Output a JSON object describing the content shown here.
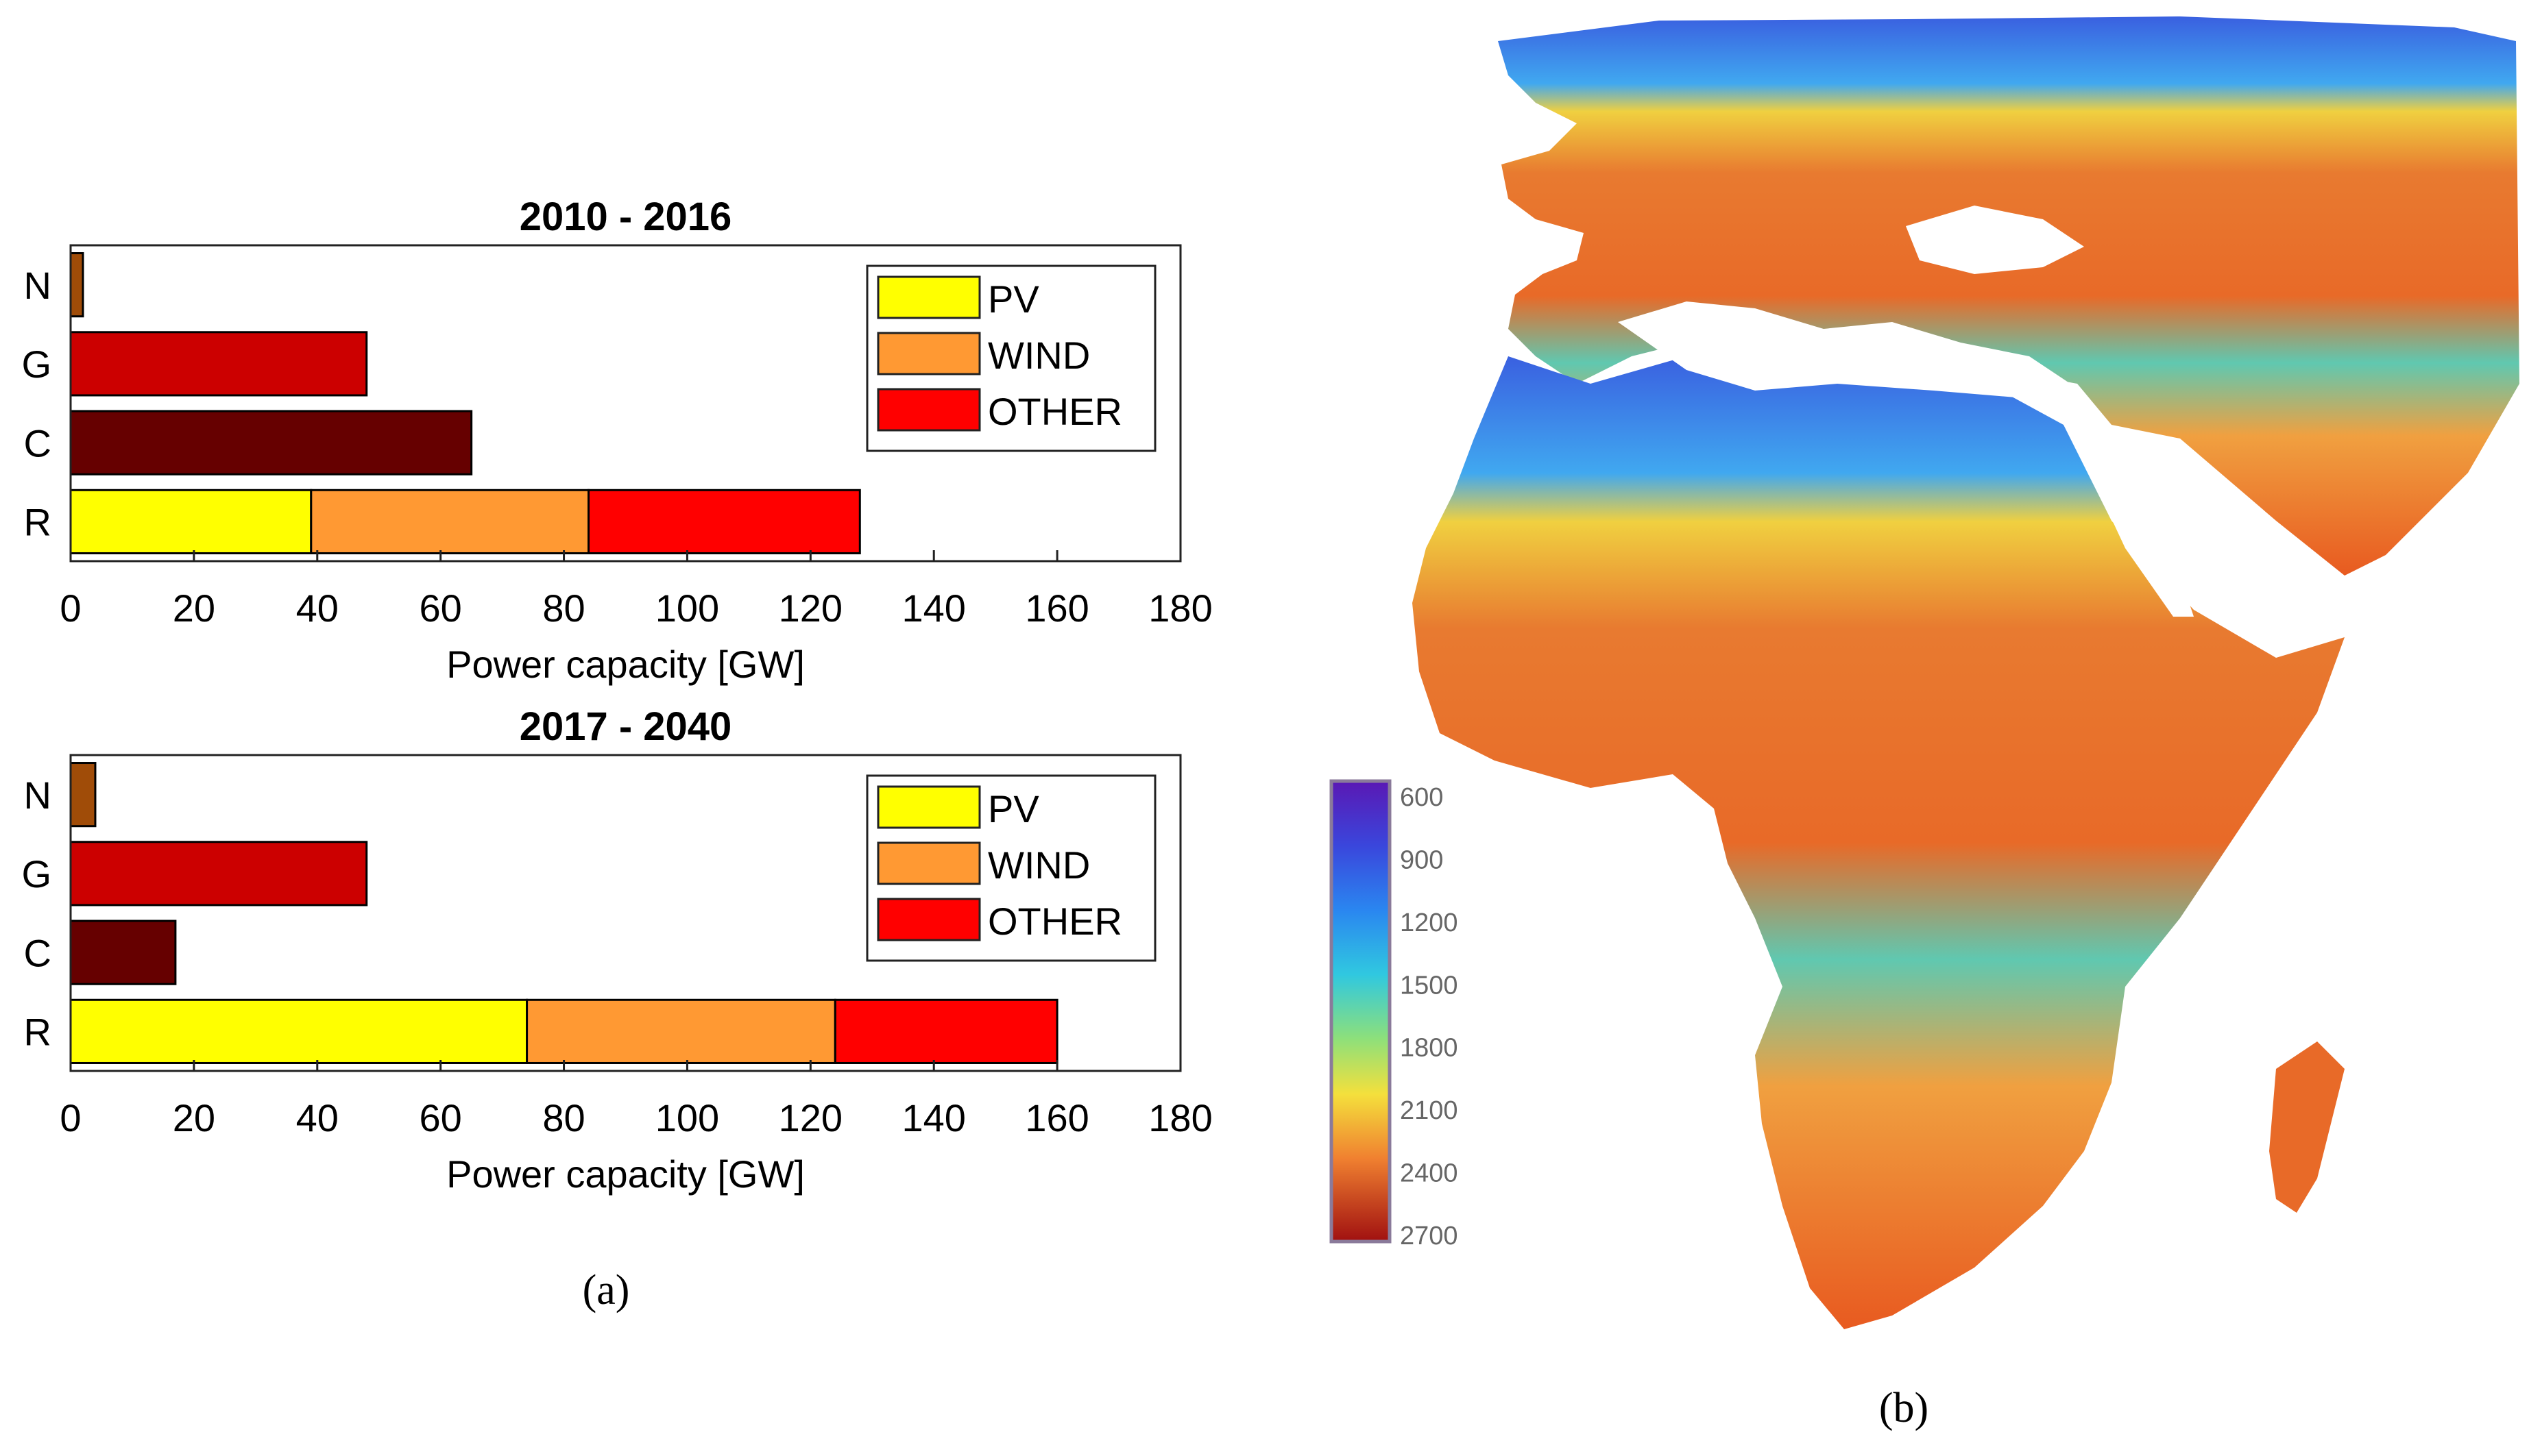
{
  "panel_a": {
    "caption": "(a)",
    "legend": [
      {
        "label": "PV",
        "color": "#ffff00"
      },
      {
        "label": "WIND",
        "color": "#ff9933"
      },
      {
        "label": "OTHER",
        "color": "#ff0000"
      }
    ]
  },
  "panel_b": {
    "caption": "(b)",
    "colorbar_ticks": [
      "600",
      "900",
      "1200",
      "1500",
      "1800",
      "2100",
      "2400",
      "2700"
    ]
  },
  "colors": {
    "N": "#a04c08",
    "G": "#cc0000",
    "C": "#660000",
    "PV": "#ffff00",
    "WIND": "#ff9933",
    "OTHER": "#ff0000"
  },
  "chart_data": [
    {
      "type": "bar",
      "orientation": "horizontal",
      "stacked": true,
      "title": "2010 - 2016",
      "xlabel": "Power capacity [GW]",
      "ylabel": "",
      "xlim": [
        0,
        180
      ],
      "xticks": [
        "0",
        "20",
        "40",
        "60",
        "80",
        "100",
        "120",
        "140",
        "160",
        "180"
      ],
      "categories": [
        "N",
        "G",
        "C",
        "R"
      ],
      "bars": [
        {
          "category": "N",
          "segments": [
            {
              "value": 2,
              "color_key": "N"
            }
          ]
        },
        {
          "category": "G",
          "segments": [
            {
              "value": 48,
              "color_key": "G"
            }
          ]
        },
        {
          "category": "C",
          "segments": [
            {
              "value": 65,
              "color_key": "C"
            }
          ]
        },
        {
          "category": "R",
          "segments": [
            {
              "series": "PV",
              "value": 39,
              "color_key": "PV"
            },
            {
              "series": "WIND",
              "value": 45,
              "color_key": "WIND"
            },
            {
              "series": "OTHER",
              "value": 44,
              "color_key": "OTHER"
            }
          ]
        }
      ],
      "legend": [
        "PV",
        "WIND",
        "OTHER"
      ],
      "legend_position": "top-right"
    },
    {
      "type": "bar",
      "orientation": "horizontal",
      "stacked": true,
      "title": "2017 - 2040",
      "xlabel": "Power capacity [GW]",
      "ylabel": "",
      "xlim": [
        0,
        180
      ],
      "xticks": [
        "0",
        "20",
        "40",
        "60",
        "80",
        "100",
        "120",
        "140",
        "160",
        "180"
      ],
      "categories": [
        "N",
        "G",
        "C",
        "R"
      ],
      "bars": [
        {
          "category": "N",
          "segments": [
            {
              "value": 4,
              "color_key": "N"
            }
          ]
        },
        {
          "category": "G",
          "segments": [
            {
              "value": 48,
              "color_key": "G"
            }
          ]
        },
        {
          "category": "C",
          "segments": [
            {
              "value": 17,
              "color_key": "C"
            }
          ]
        },
        {
          "category": "R",
          "segments": [
            {
              "series": "PV",
              "value": 74,
              "color_key": "PV"
            },
            {
              "series": "WIND",
              "value": 50,
              "color_key": "WIND"
            },
            {
              "series": "OTHER",
              "value": 36,
              "color_key": "OTHER"
            }
          ]
        }
      ],
      "legend": [
        "PV",
        "WIND",
        "OTHER"
      ],
      "legend_position": "top-right"
    },
    {
      "type": "heatmap",
      "description_kind": "map",
      "colorbar_range": [
        600,
        2700
      ],
      "colorbar_ticks": [
        600,
        900,
        1200,
        1500,
        1800,
        2100,
        2400,
        2700
      ]
    }
  ]
}
